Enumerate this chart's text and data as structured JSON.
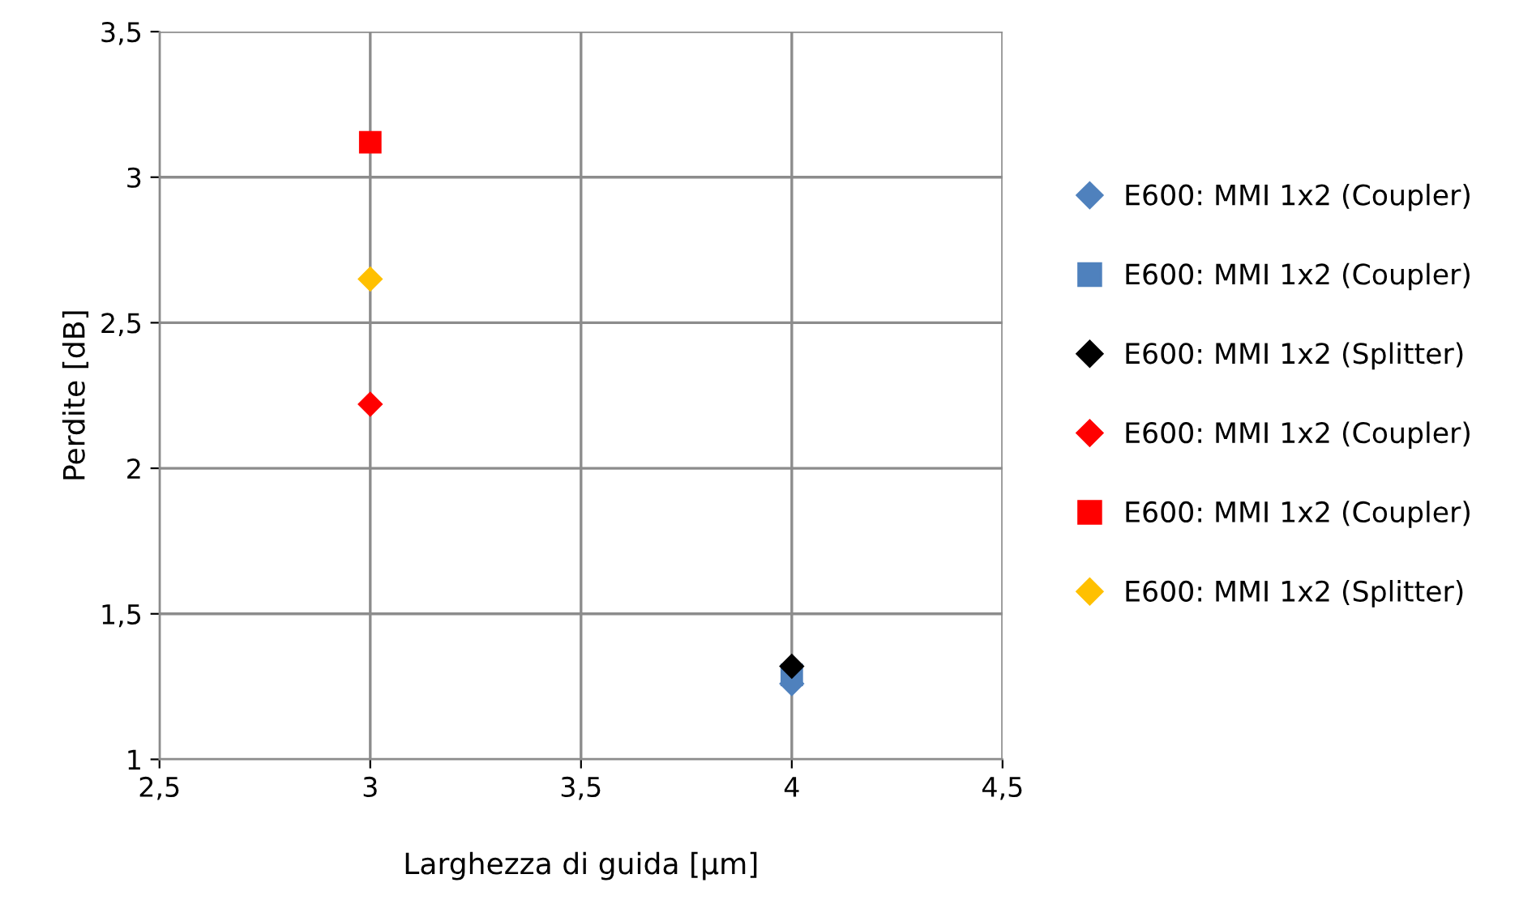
{
  "chart_data": {
    "type": "scatter",
    "xlabel": "Larghezza di guida [µm]",
    "ylabel": "Perdite [dB]",
    "xlim": [
      2.5,
      4.5
    ],
    "ylim": [
      1,
      3.5
    ],
    "xticks": [
      {
        "value": 2.5,
        "label": "2,5"
      },
      3,
      {
        "value": 3.5,
        "label": "3,5"
      },
      4,
      {
        "value": 4.5,
        "label": "4,5"
      }
    ],
    "yticks": [
      1,
      {
        "value": 1.5,
        "label": "1,5"
      },
      2,
      {
        "value": 2.5,
        "label": "2,5"
      },
      3,
      {
        "value": 3.5,
        "label": "3,5"
      }
    ],
    "grid": true,
    "legend": "right",
    "x": [
      3,
      4
    ],
    "series": [
      {
        "name": "E600: MMI 1x2 (Coupler)",
        "color": "#4f81bd",
        "marker": "diamond",
        "values": [
          null,
          1.26
        ]
      },
      {
        "name": "E600: MMI 1x2 (Coupler)",
        "color": "#4f81bd",
        "marker": "square",
        "values": [
          null,
          1.29
        ]
      },
      {
        "name": "E600: MMI 1x2 (Splitter)",
        "color": "#000000",
        "marker": "diamond",
        "values": [
          null,
          1.32
        ]
      },
      {
        "name": "E600: MMI 1x2 (Coupler)",
        "color": "#ff0000",
        "marker": "diamond",
        "values": [
          2.22,
          null
        ]
      },
      {
        "name": "E600: MMI 1x2 (Coupler)",
        "color": "#ff0000",
        "marker": "square",
        "values": [
          3.12,
          null
        ]
      },
      {
        "name": "E600: MMI 1x2 (Splitter)",
        "color": "#ffc000",
        "marker": "diamond",
        "values": [
          2.65,
          null
        ]
      }
    ]
  }
}
